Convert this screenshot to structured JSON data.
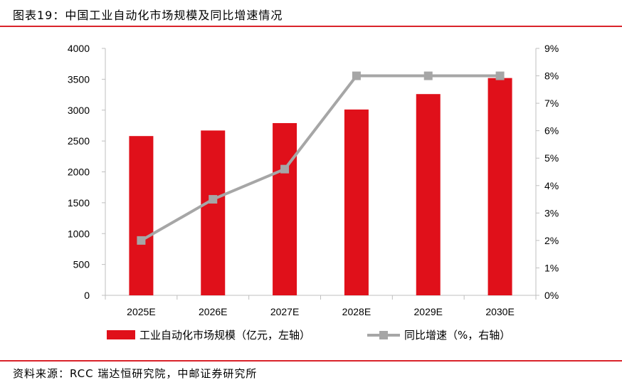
{
  "title": "图表19：中国工业自动化市场规模及同比增速情况",
  "source": "资料来源：RCC 瑞达恒研究院，中邮证券研究所",
  "colors": {
    "bar": "#e0101a",
    "line": "#a6a6a6",
    "rule": "#d9232a",
    "axis": "#bfbfbf"
  },
  "chart_data": {
    "type": "bar",
    "categories": [
      "2025E",
      "2026E",
      "2027E",
      "2028E",
      "2029E",
      "2030E"
    ],
    "series": [
      {
        "name": "工业自动化市场规模（亿元，左轴）",
        "type": "bar",
        "axis": "left",
        "values": [
          2580,
          2670,
          2790,
          3010,
          3260,
          3520
        ]
      },
      {
        "name": "同比增速（%，右轴）",
        "type": "line",
        "axis": "right",
        "values": [
          2.0,
          3.5,
          4.6,
          8.0,
          8.0,
          8.0
        ]
      }
    ],
    "y_left": {
      "min": 0,
      "max": 4000,
      "step": 500,
      "ticks": [
        "0",
        "500",
        "1000",
        "1500",
        "2000",
        "2500",
        "3000",
        "3500",
        "4000"
      ]
    },
    "y_right": {
      "min": 0,
      "max": 9,
      "step": 1,
      "ticks": [
        "0%",
        "1%",
        "2%",
        "3%",
        "4%",
        "5%",
        "6%",
        "7%",
        "8%",
        "9%"
      ]
    },
    "grid": false,
    "legend_position": "bottom"
  }
}
